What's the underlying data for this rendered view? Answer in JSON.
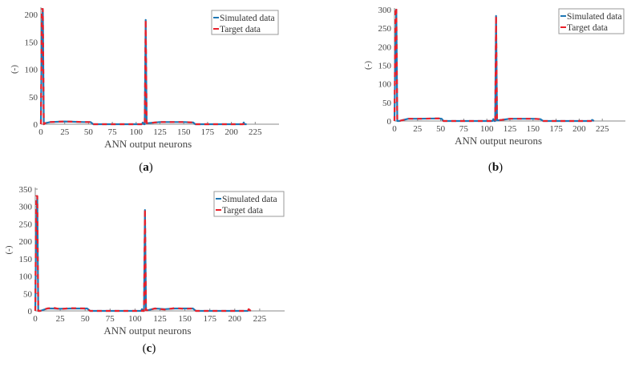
{
  "chart_data": [
    {
      "id": "a",
      "type": "line",
      "caption_letter": "a",
      "title": "",
      "xlabel": "ANN output neurons",
      "ylabel": "(-)",
      "xlim": [
        0,
        250
      ],
      "ylim": [
        0,
        210
      ],
      "xticks": [
        0,
        25,
        50,
        75,
        100,
        125,
        150,
        175,
        200,
        225
      ],
      "yticks": [
        0,
        50,
        100,
        150,
        200
      ],
      "grid": false,
      "legend_position": "top-right",
      "legend": [
        "Simulated data",
        "Target data"
      ],
      "series": [
        {
          "name": "Simulated data",
          "color": "#1f77b4",
          "style": "solid",
          "x": [
            0,
            1,
            2,
            3,
            5,
            10,
            25,
            45,
            52,
            55,
            75,
            100,
            106,
            107,
            108,
            109,
            110,
            111,
            113,
            125,
            150,
            160,
            162,
            175,
            200,
            212,
            213,
            214,
            216
          ],
          "y": [
            0,
            180,
            210,
            0,
            2,
            4,
            5,
            4,
            4,
            0,
            0,
            0,
            0,
            3,
            0,
            0,
            190,
            2,
            2,
            4,
            4,
            3,
            0,
            0,
            0,
            0,
            3,
            0,
            0
          ]
        },
        {
          "name": "Target data",
          "color": "#e8212b",
          "style": "dashed",
          "x": [
            0,
            1,
            2,
            3,
            5,
            10,
            25,
            45,
            52,
            55,
            75,
            100,
            106,
            108,
            109,
            110,
            111,
            113,
            125,
            150,
            160,
            162,
            175,
            200,
            214,
            216
          ],
          "y": [
            0,
            210,
            210,
            0,
            2,
            4,
            5,
            4,
            4,
            0,
            0,
            0,
            0,
            0,
            0,
            190,
            2,
            2,
            4,
            4,
            3,
            0,
            0,
            0,
            0,
            0
          ]
        }
      ]
    },
    {
      "id": "b",
      "type": "line",
      "caption_letter": "b",
      "title": "",
      "xlabel": "ANN output neurons",
      "ylabel": "(-)",
      "xlim": [
        0,
        250
      ],
      "ylim": [
        0,
        300
      ],
      "xticks": [
        0,
        25,
        50,
        75,
        100,
        125,
        150,
        175,
        200,
        225
      ],
      "yticks": [
        0,
        50,
        100,
        150,
        200,
        250,
        300
      ],
      "grid": false,
      "legend_position": "top-right",
      "legend": [
        "Simulated data",
        "Target data"
      ],
      "series": [
        {
          "name": "Simulated data",
          "color": "#1f77b4",
          "style": "solid",
          "x": [
            0,
            1,
            2,
            3,
            5,
            15,
            25,
            48,
            51,
            53,
            75,
            100,
            106,
            107,
            108,
            109,
            110,
            111,
            113,
            125,
            150,
            158,
            161,
            175,
            200,
            213,
            214,
            216
          ],
          "y": [
            0,
            200,
            300,
            0,
            0,
            6,
            6,
            7,
            6,
            0,
            0,
            0,
            0,
            5,
            0,
            0,
            283,
            2,
            2,
            6,
            6,
            5,
            0,
            0,
            0,
            0,
            3,
            0
          ]
        },
        {
          "name": "Target data",
          "color": "#e8212b",
          "style": "dashed",
          "x": [
            0,
            1,
            2,
            3,
            5,
            15,
            25,
            48,
            51,
            53,
            75,
            100,
            108,
            109,
            110,
            111,
            113,
            125,
            150,
            158,
            161,
            175,
            200,
            213,
            214,
            216
          ],
          "y": [
            0,
            300,
            305,
            0,
            0,
            6,
            6,
            7,
            6,
            0,
            0,
            0,
            0,
            0,
            283,
            2,
            2,
            6,
            6,
            5,
            0,
            0,
            0,
            0,
            5,
            0
          ]
        }
      ]
    },
    {
      "id": "c",
      "type": "line",
      "caption_letter": "c",
      "title": "",
      "xlabel": "ANN output neurons",
      "ylabel": "(-)",
      "xlim": [
        0,
        250
      ],
      "ylim": [
        0,
        350
      ],
      "xticks": [
        0,
        25,
        50,
        75,
        100,
        125,
        150,
        175,
        200,
        225
      ],
      "yticks": [
        0,
        50,
        100,
        150,
        200,
        250,
        300,
        350
      ],
      "grid": false,
      "legend_position": "top-right",
      "legend": [
        "Simulated data",
        "Target data"
      ],
      "series": [
        {
          "name": "Simulated data",
          "color": "#1f77b4",
          "style": "solid",
          "x": [
            0,
            1,
            2,
            3,
            5,
            12,
            18,
            25,
            35,
            50,
            52,
            55,
            75,
            100,
            106,
            107,
            108,
            109,
            110,
            111,
            113,
            120,
            130,
            140,
            150,
            158,
            161,
            175,
            200,
            213,
            214,
            216
          ],
          "y": [
            0,
            250,
            330,
            0,
            0,
            7,
            7,
            6,
            7,
            7,
            7,
            0,
            0,
            0,
            0,
            5,
            0,
            0,
            290,
            2,
            2,
            7,
            5,
            7,
            7,
            7,
            0,
            0,
            0,
            0,
            3,
            0
          ]
        },
        {
          "name": "Target data",
          "color": "#e8212b",
          "style": "dashed",
          "x": [
            0,
            1,
            2,
            3,
            5,
            12,
            18,
            25,
            35,
            50,
            52,
            55,
            75,
            100,
            108,
            109,
            110,
            111,
            113,
            120,
            130,
            140,
            150,
            158,
            161,
            175,
            200,
            213,
            214,
            216
          ],
          "y": [
            0,
            330,
            330,
            0,
            0,
            7,
            9,
            5,
            8,
            7,
            7,
            0,
            0,
            0,
            0,
            0,
            292,
            2,
            2,
            7,
            4,
            8,
            6,
            7,
            0,
            0,
            0,
            0,
            5,
            0
          ]
        }
      ]
    }
  ]
}
